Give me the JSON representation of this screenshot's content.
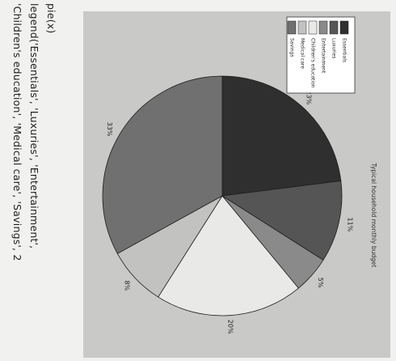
{
  "code": {
    "line1": "pie(x)",
    "line2": "legend('Essentials', 'Luxuries', 'Entertainment',",
    "line3": "'Children's education', 'Medical care', 'Savings', 2"
  },
  "chart_data": {
    "type": "pie",
    "title": "Typical household monthly budget",
    "categories": [
      "Essentials",
      "Luxuries",
      "Entertainment",
      "Children's education",
      "Medical care",
      "Savings"
    ],
    "values": [
      23,
      11,
      5,
      20,
      8,
      33
    ],
    "data_labels": [
      "23%",
      "11%",
      "5%",
      "20%",
      "8%",
      "33%"
    ],
    "legend_placement": "top-right",
    "colors": [
      "#2f2f2f",
      "#555555",
      "#8a8a8a",
      "#e9e9e7",
      "#c2c2c0",
      "#707070"
    ]
  }
}
